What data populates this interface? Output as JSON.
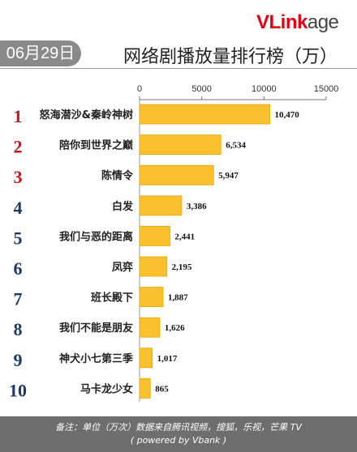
{
  "brand": {
    "logo_v": "V",
    "logo_link": "Link",
    "logo_age": "age"
  },
  "header": {
    "date": "06月29日",
    "title": "网络剧播放量排行榜（万）"
  },
  "colors": {
    "bar": "#fbc02d",
    "bar_edge": "#e0a800",
    "rank_red": "#c8161d",
    "rank_dark": "#1f3864",
    "footer_bg": "#6e6e6e"
  },
  "chart_data": {
    "type": "bar",
    "orientation": "horizontal",
    "title": "网络剧播放量排行榜（万）",
    "xlim": [
      0,
      15000
    ],
    "x_ticks": [
      "0",
      "5000",
      "10000",
      "15000"
    ],
    "ranks": [
      "1",
      "2",
      "3",
      "4",
      "5",
      "6",
      "7",
      "8",
      "9",
      "10"
    ],
    "categories": [
      "怒海潜沙&秦岭神树",
      "陪你到世界之巅",
      "陈情令",
      "白发",
      "我们与恶的距离",
      "凤弈",
      "班长殿下",
      "我们不能是朋友",
      "神犬小七第三季",
      "马卡龙少女"
    ],
    "values": [
      10470,
      6534,
      5947,
      3386,
      2441,
      2195,
      1887,
      1626,
      1017,
      865
    ],
    "value_labels": [
      "10,470",
      "6,534",
      "5,947",
      "3,386",
      "2,441",
      "2,195",
      "1,887",
      "1,626",
      "1,017",
      "865"
    ],
    "grid": false
  },
  "footer": {
    "line1": "备注：单位（万次）数据来自腾讯视频，搜狐，乐视，芒果 TV",
    "line2": "( powered by Vbank )"
  }
}
